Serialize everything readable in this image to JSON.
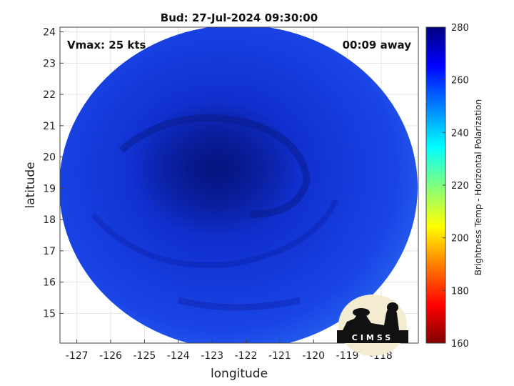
{
  "title": "Bud: 27-Jul-2024 09:30:00",
  "vmax_label": "Vmax: 25 kts",
  "time_label": "00:09 away",
  "xlabel": "longitude",
  "ylabel": "latitude",
  "colorbar_label": "Brightness Temp - Horizontal Polarization",
  "logo_text": "CIMSS",
  "map_data": {
    "type": "heatmap",
    "x_ticks": [
      "-127",
      "-126",
      "-125",
      "-124",
      "-123",
      "-122",
      "-121",
      "-120",
      "-119",
      "-118"
    ],
    "y_ticks": [
      "15",
      "16",
      "17",
      "18",
      "19",
      "20",
      "21",
      "22",
      "23",
      "24"
    ],
    "x_values": [
      -127,
      -126,
      -125,
      -124,
      -123,
      -122,
      -121,
      -120,
      -119,
      -118
    ],
    "y_values": [
      15,
      16,
      17,
      18,
      19,
      20,
      21,
      22,
      23,
      24
    ],
    "xlim": [
      -127.5,
      -116.9
    ],
    "ylim": [
      14.05,
      24.15
    ],
    "colorbar_ticks": [
      "160",
      "180",
      "200",
      "220",
      "240",
      "260",
      "280"
    ],
    "colorbar_values": [
      160,
      180,
      200,
      220,
      240,
      260,
      280
    ],
    "colorbar_range": [
      160,
      280
    ],
    "colormap": [
      "#800000",
      "#ff0000",
      "#ff8000",
      "#ffff00",
      "#80ff80",
      "#00ffff",
      "#0080ff",
      "#0000ff",
      "#000080"
    ],
    "swath_color": "#1a3fe0",
    "storm_center": {
      "lon": -122.6,
      "lat": 19.6
    },
    "grid": true
  }
}
